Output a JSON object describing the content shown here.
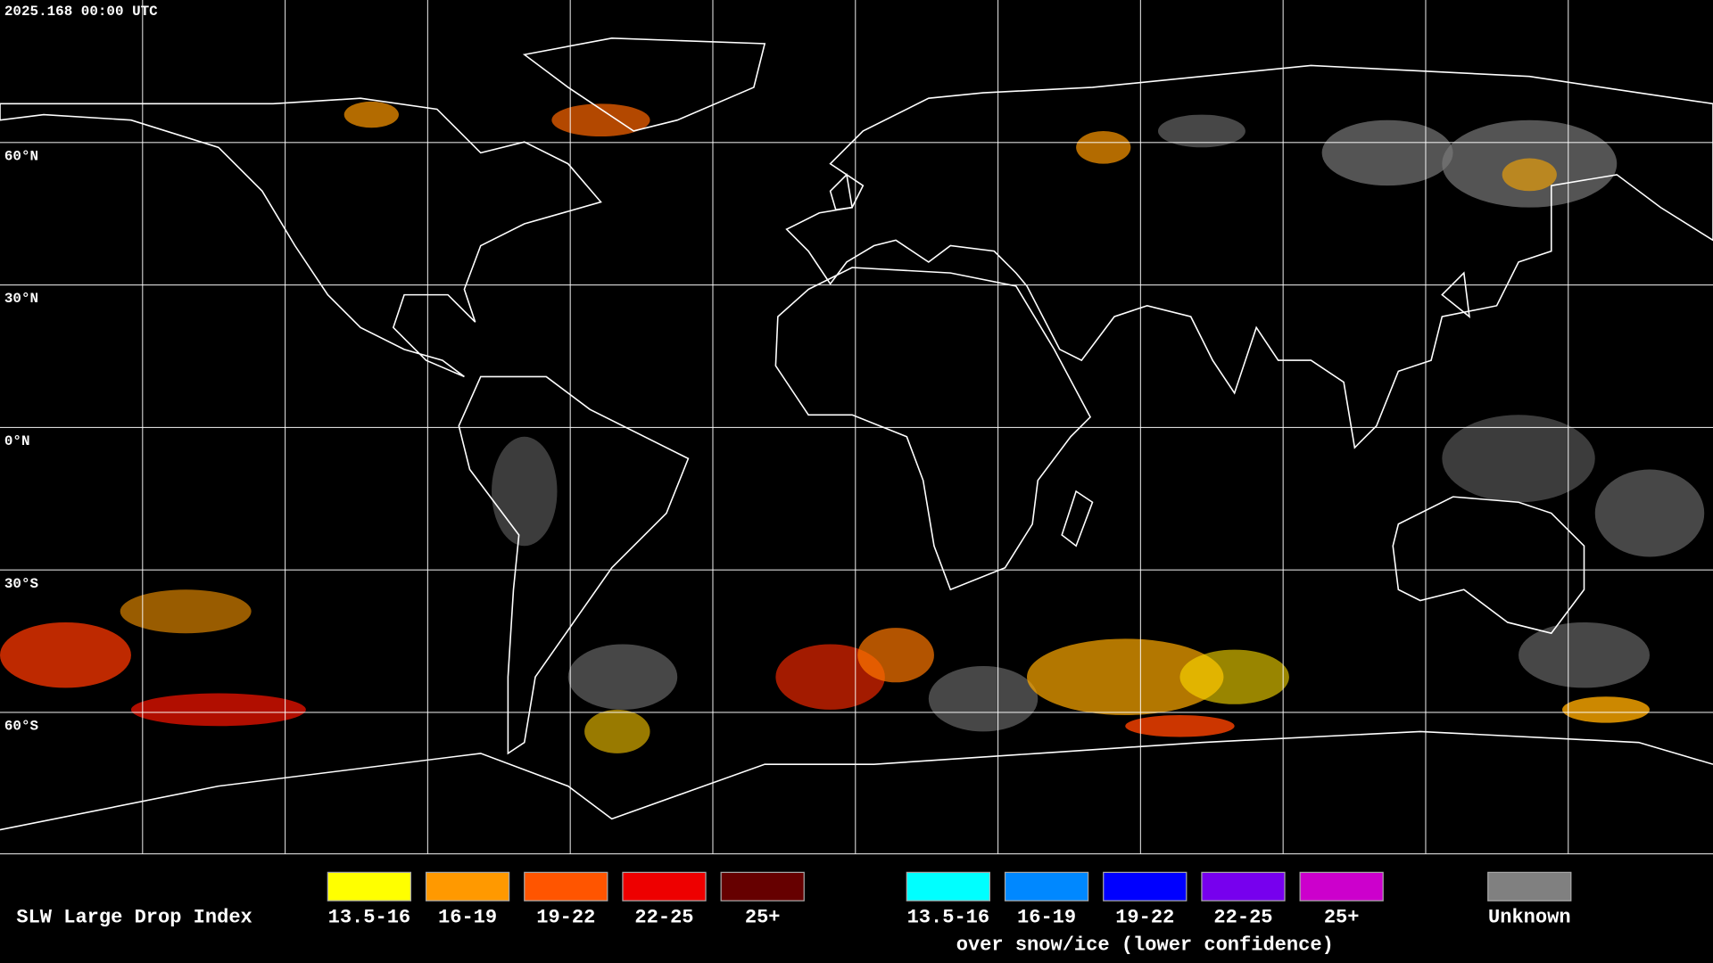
{
  "header": {
    "timestamp": "2025.168 00:00 UTC"
  },
  "map": {
    "latitude_labels": [
      "60°N",
      "30°N",
      "0°N",
      "30°S",
      "60°S"
    ]
  },
  "legend": {
    "title": "SLW Large Drop Index",
    "groups": [
      {
        "items": [
          {
            "label": "13.5-16",
            "color": "#ffff00"
          },
          {
            "label": "16-19",
            "color": "#ff9900"
          },
          {
            "label": "19-22",
            "color": "#ff5500"
          },
          {
            "label": "22-25",
            "color": "#ee0000"
          },
          {
            "label": "25+",
            "color": "#660000"
          }
        ]
      },
      {
        "items": [
          {
            "label": "13.5-16",
            "color": "#00ffff"
          },
          {
            "label": "16-19",
            "color": "#0088ff"
          },
          {
            "label": "19-22",
            "color": "#0000ff"
          },
          {
            "label": "22-25",
            "color": "#7700ee"
          },
          {
            "label": "25+",
            "color": "#cc00cc"
          }
        ],
        "note": "over snow/ice (lower confidence)"
      },
      {
        "items": [
          {
            "label": "Unknown",
            "color": "#808080"
          }
        ]
      }
    ]
  }
}
